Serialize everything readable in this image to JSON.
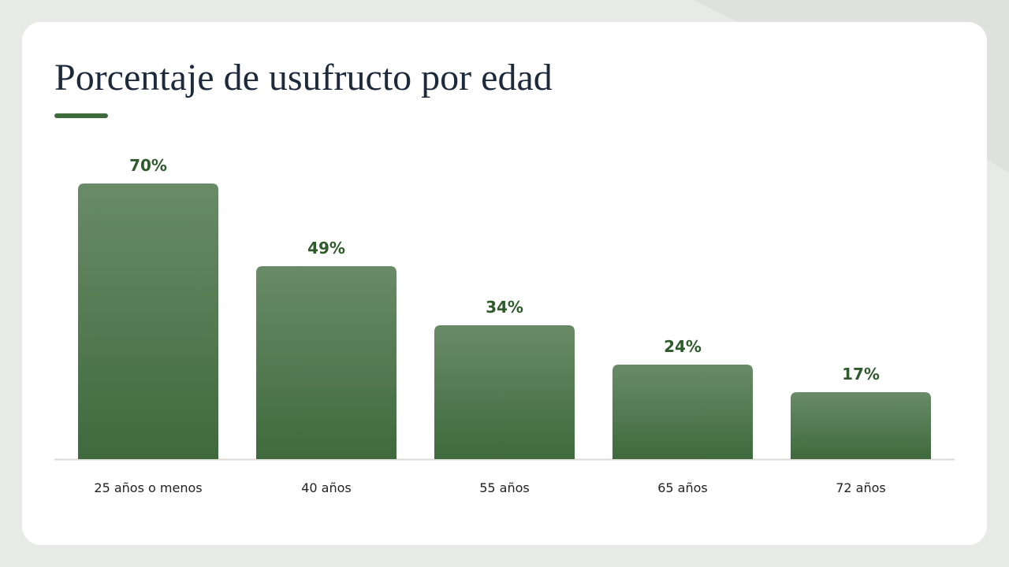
{
  "chart_data": {
    "type": "bar",
    "title": "Porcentaje de usufructo por edad",
    "categories": [
      "25 años o menos",
      "40 años",
      "55 años",
      "65 años",
      "72 años"
    ],
    "values": [
      70,
      49,
      34,
      24,
      17
    ],
    "value_labels": [
      "70%",
      "49%",
      "34%",
      "24%",
      "17%"
    ],
    "color": "#3f6a3d"
  }
}
